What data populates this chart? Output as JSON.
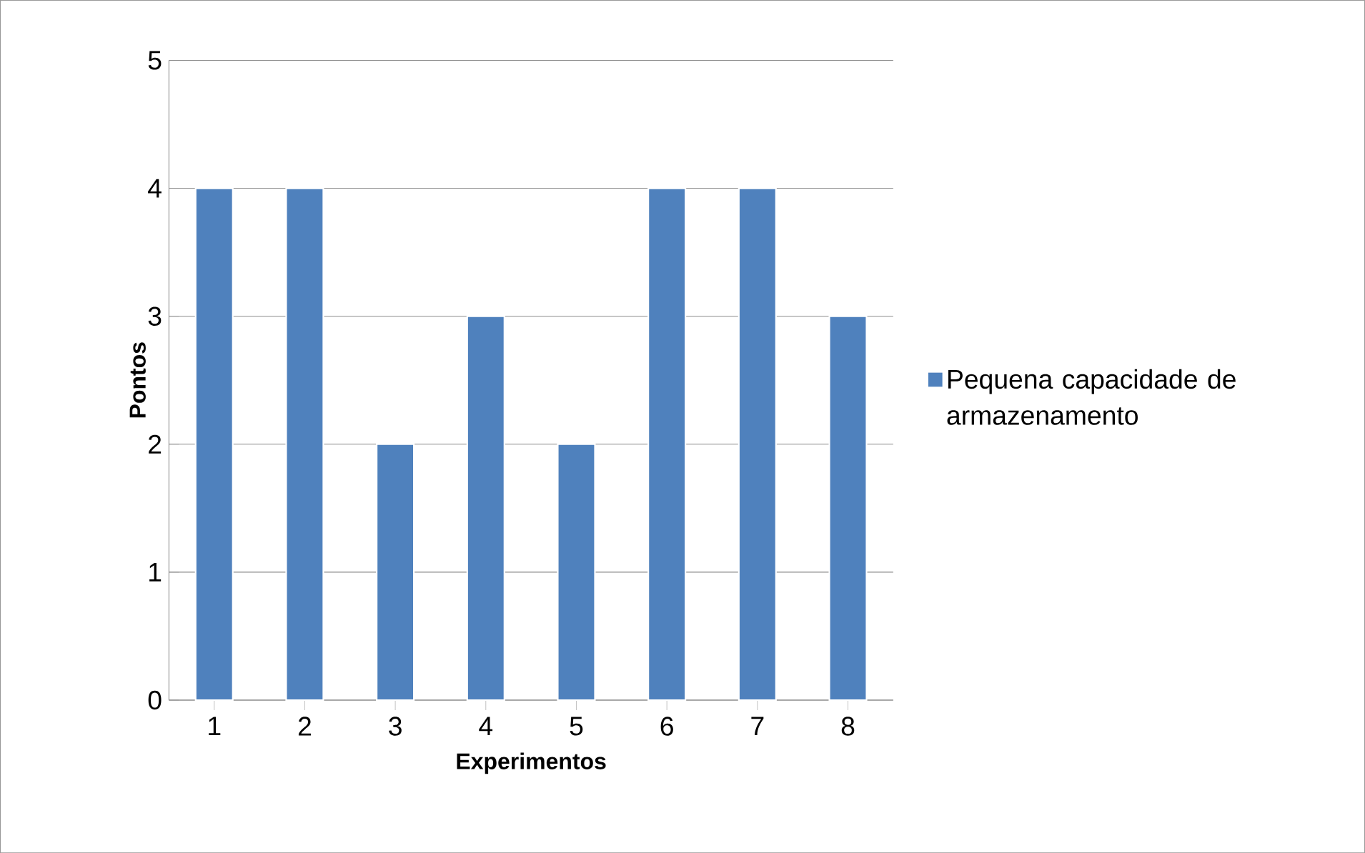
{
  "chart_data": {
    "type": "bar",
    "xlabel": "Experimentos",
    "ylabel": "Pontos",
    "categories": [
      "1",
      "2",
      "3",
      "4",
      "5",
      "6",
      "7",
      "8"
    ],
    "series": [
      {
        "name": "Pequena capacidade de armazenamento",
        "color": "#4f81bd",
        "values": [
          4,
          4,
          2,
          3,
          2,
          4,
          4,
          3
        ]
      }
    ],
    "ylim": [
      0,
      5
    ],
    "yticks": [
      0,
      1,
      2,
      3,
      4,
      5
    ],
    "grid": "y",
    "legend": "right"
  }
}
